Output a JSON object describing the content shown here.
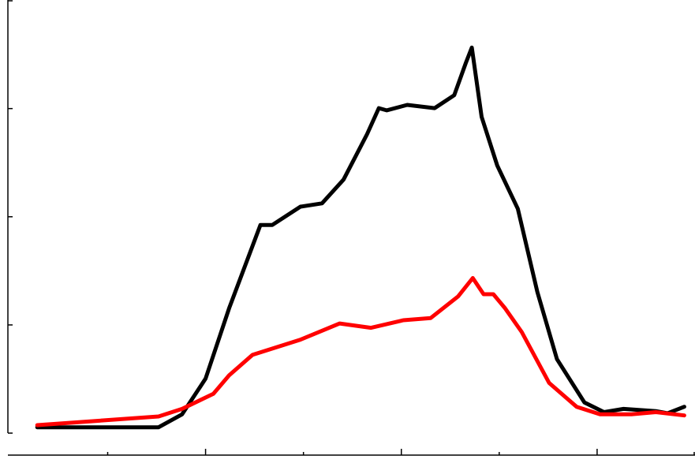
{
  "chart_data": {
    "type": "line",
    "xlim": [
      -0.1,
      7.0
    ],
    "ylim": [
      -0.28,
      4
    ],
    "xticks": [
      1,
      2,
      3,
      4,
      5,
      6,
      7
    ],
    "yticks": [
      0,
      1,
      2,
      3,
      4
    ],
    "series": [
      {
        "color": "#000000",
        "x": [
          0.28,
          1.52,
          1.76,
          2.0,
          2.24,
          2.56,
          2.68,
          2.97,
          3.19,
          3.41,
          3.65,
          3.77,
          3.85,
          4.06,
          4.34,
          4.54,
          4.66,
          4.72,
          4.82,
          4.98,
          5.19,
          5.39,
          5.59,
          5.87,
          6.07,
          6.27,
          6.6,
          6.72,
          6.89
        ],
        "values": [
          0.05,
          0.05,
          0.17,
          0.5,
          1.15,
          1.92,
          1.92,
          2.09,
          2.12,
          2.34,
          2.76,
          3.0,
          2.98,
          3.03,
          3.0,
          3.12,
          3.42,
          3.56,
          2.92,
          2.47,
          2.07,
          1.3,
          0.68,
          0.28,
          0.19,
          0.22,
          0.2,
          0.18,
          0.24
        ]
      },
      {
        "color": "#ff0000",
        "x": [
          0.28,
          1.52,
          1.76,
          2.08,
          2.24,
          2.48,
          2.97,
          3.37,
          3.69,
          4.02,
          4.3,
          4.58,
          4.73,
          4.84,
          4.94,
          5.06,
          5.23,
          5.51,
          5.79,
          6.03,
          6.35,
          6.6,
          6.89
        ],
        "values": [
          0.07,
          0.15,
          0.22,
          0.36,
          0.53,
          0.72,
          0.86,
          1.01,
          0.97,
          1.04,
          1.06,
          1.26,
          1.43,
          1.28,
          1.28,
          1.15,
          0.93,
          0.46,
          0.24,
          0.17,
          0.17,
          0.19,
          0.16
        ]
      }
    ]
  }
}
